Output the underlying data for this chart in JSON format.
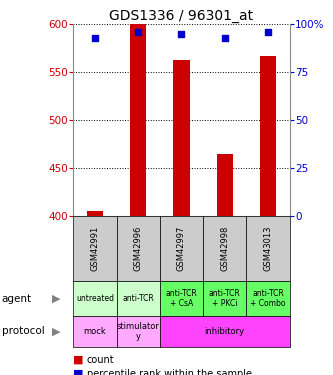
{
  "title": "GDS1336 / 96301_at",
  "samples": [
    "GSM42991",
    "GSM42996",
    "GSM42997",
    "GSM42998",
    "GSM43013"
  ],
  "count_values": [
    405,
    600,
    563,
    464,
    567
  ],
  "percentile_values": [
    93,
    96,
    95,
    93,
    96
  ],
  "ylim_left": [
    400,
    600
  ],
  "ylim_right": [
    0,
    100
  ],
  "yticks_left": [
    400,
    450,
    500,
    550,
    600
  ],
  "yticks_right": [
    0,
    25,
    50,
    75,
    100
  ],
  "agent_labels": [
    "untreated",
    "anti-TCR",
    "anti-TCR\n+ CsA",
    "anti-TCR\n+ PKCi",
    "anti-TCR\n+ Combo"
  ],
  "agent_colors": [
    "#ccffcc",
    "#ccffcc",
    "#66ff66",
    "#66ff66",
    "#66ff66"
  ],
  "proto_spans": [
    {
      "label": "mock",
      "start": 0,
      "end": 1,
      "color": "#ffaaff"
    },
    {
      "label": "stimulator\ny",
      "start": 1,
      "end": 2,
      "color": "#ffaaff"
    },
    {
      "label": "inhibitory",
      "start": 2,
      "end": 5,
      "color": "#ff44ff"
    }
  ],
  "bar_color": "#cc0000",
  "dot_color": "#0000cc",
  "sample_bg_color": "#cccccc",
  "left_axis_color": "#cc0000",
  "right_axis_color": "#0000cc",
  "grid_linestyle": ":",
  "grid_linewidth": 0.7
}
